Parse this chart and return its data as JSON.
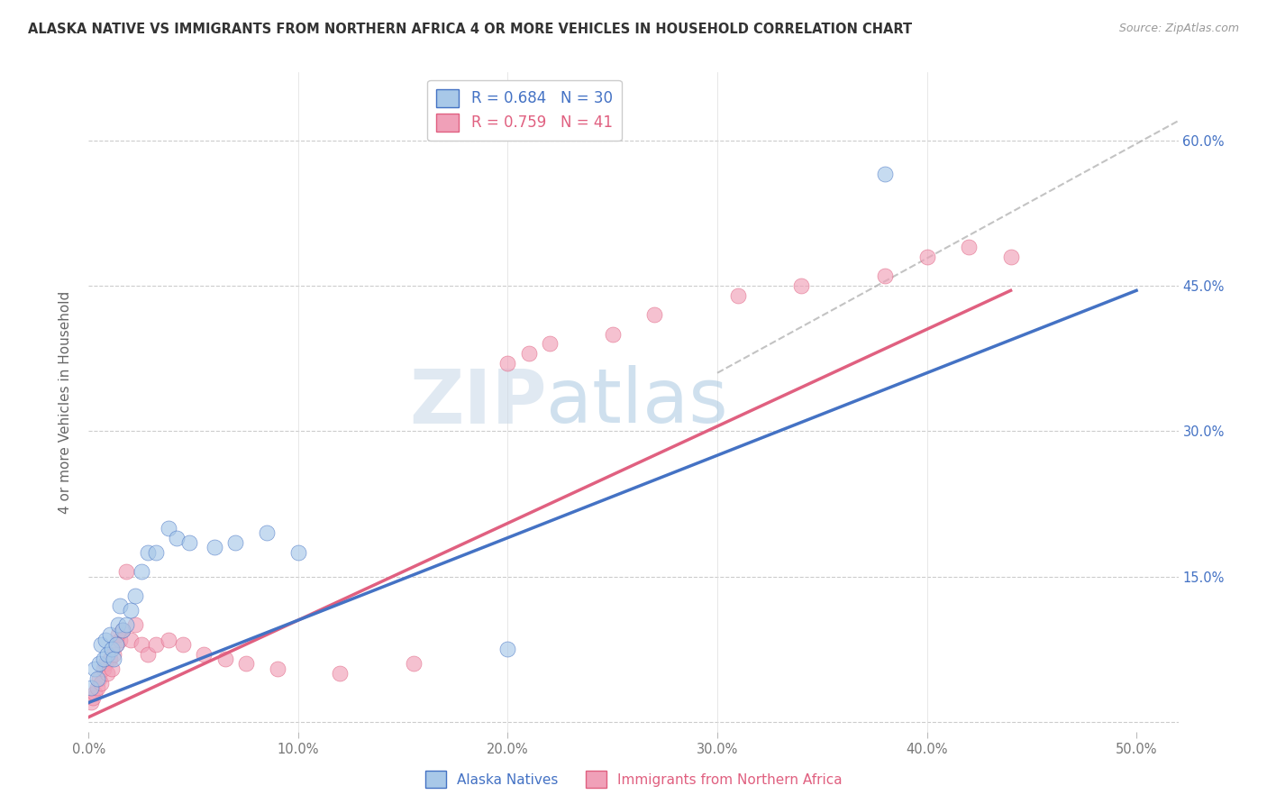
{
  "title": "ALASKA NATIVE VS IMMIGRANTS FROM NORTHERN AFRICA 4 OR MORE VEHICLES IN HOUSEHOLD CORRELATION CHART",
  "source": "Source: ZipAtlas.com",
  "ylabel": "4 or more Vehicles in Household",
  "legend_label_1": "Alaska Natives",
  "legend_label_2": "Immigrants from Northern Africa",
  "R1": 0.684,
  "N1": 30,
  "R2": 0.759,
  "N2": 41,
  "color1": "#a8c8e8",
  "color1_line": "#4472c4",
  "color2": "#f0a0b8",
  "color2_line": "#e06080",
  "xlim": [
    0.0,
    0.52
  ],
  "ylim": [
    -0.01,
    0.67
  ],
  "xticks": [
    0.0,
    0.1,
    0.2,
    0.3,
    0.4,
    0.5
  ],
  "yticks": [
    0.0,
    0.15,
    0.3,
    0.45,
    0.6
  ],
  "xtick_labels": [
    "0.0%",
    "10.0%",
    "20.0%",
    "30.0%",
    "40.0%",
    "50.0%"
  ],
  "ytick_labels_right": [
    "",
    "15.0%",
    "30.0%",
    "45.0%",
    "60.0%"
  ],
  "watermark_zip": "ZIP",
  "watermark_atlas": "atlas",
  "blue_x": [
    0.001,
    0.003,
    0.004,
    0.005,
    0.006,
    0.007,
    0.008,
    0.009,
    0.01,
    0.011,
    0.012,
    0.013,
    0.014,
    0.015,
    0.016,
    0.018,
    0.02,
    0.022,
    0.025,
    0.028,
    0.032,
    0.038,
    0.042,
    0.048,
    0.06,
    0.07,
    0.085,
    0.1,
    0.2,
    0.38
  ],
  "blue_y": [
    0.035,
    0.055,
    0.045,
    0.06,
    0.08,
    0.065,
    0.085,
    0.07,
    0.09,
    0.075,
    0.065,
    0.08,
    0.1,
    0.12,
    0.095,
    0.1,
    0.115,
    0.13,
    0.155,
    0.175,
    0.175,
    0.2,
    0.19,
    0.185,
    0.18,
    0.185,
    0.195,
    0.175,
    0.075,
    0.565
  ],
  "pink_x": [
    0.001,
    0.002,
    0.003,
    0.004,
    0.005,
    0.006,
    0.007,
    0.008,
    0.009,
    0.01,
    0.011,
    0.012,
    0.013,
    0.014,
    0.015,
    0.016,
    0.018,
    0.02,
    0.022,
    0.025,
    0.028,
    0.032,
    0.038,
    0.045,
    0.055,
    0.065,
    0.075,
    0.09,
    0.12,
    0.155,
    0.2,
    0.21,
    0.22,
    0.25,
    0.27,
    0.31,
    0.34,
    0.38,
    0.4,
    0.42,
    0.44
  ],
  "pink_y": [
    0.02,
    0.025,
    0.03,
    0.035,
    0.045,
    0.04,
    0.055,
    0.06,
    0.05,
    0.065,
    0.055,
    0.07,
    0.08,
    0.09,
    0.085,
    0.095,
    0.155,
    0.085,
    0.1,
    0.08,
    0.07,
    0.08,
    0.085,
    0.08,
    0.07,
    0.065,
    0.06,
    0.055,
    0.05,
    0.06,
    0.37,
    0.38,
    0.39,
    0.4,
    0.42,
    0.44,
    0.45,
    0.46,
    0.48,
    0.49,
    0.48
  ],
  "blue_line_x": [
    0.0,
    0.5
  ],
  "blue_line_y": [
    0.02,
    0.445
  ],
  "pink_line_x": [
    0.0,
    0.44
  ],
  "pink_line_y": [
    0.005,
    0.445
  ],
  "dash_line_x": [
    0.3,
    0.52
  ],
  "dash_line_y": [
    0.36,
    0.62
  ]
}
